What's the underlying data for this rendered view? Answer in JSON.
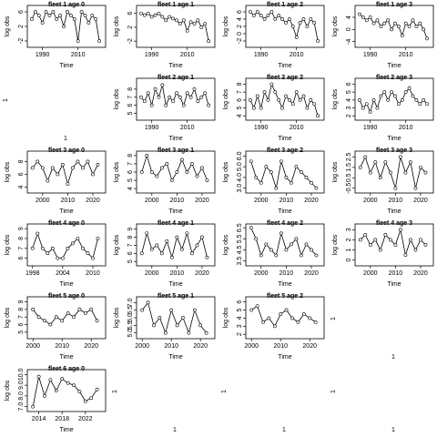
{
  "chart_data": [
    {
      "type": "line",
      "title": "fleet 1 age 0",
      "xlabel": "Time",
      "ylabel": "log obs",
      "points": true,
      "xlim": [
        1983,
        2024
      ],
      "xticks": [
        1990,
        2010
      ],
      "ylim": [
        -3,
        7
      ],
      "yticks": [
        -2,
        2,
        6
      ],
      "x": [
        1984,
        1986,
        1988,
        1990,
        1992,
        1994,
        1996,
        1998,
        2000,
        2002,
        2004,
        2006,
        2008,
        2010,
        2012,
        2014,
        2016,
        2018,
        2020,
        2022
      ],
      "values": [
        4,
        6,
        5,
        3,
        6,
        5,
        6,
        4,
        5,
        2,
        6,
        5,
        4,
        -2,
        6,
        5,
        3,
        5,
        4,
        -2
      ]
    },
    {
      "type": "line",
      "title": "fleet 1 age 1",
      "xlabel": "Time",
      "ylabel": "log obs",
      "points": true,
      "xlim": [
        1983,
        2024
      ],
      "xticks": [
        1990,
        2010
      ],
      "ylim": [
        -3,
        7.5
      ],
      "yticks": [
        -2,
        2,
        6
      ],
      "x": [
        1984,
        1986,
        1988,
        1990,
        1992,
        1994,
        1996,
        1998,
        2000,
        2002,
        2004,
        2006,
        2008,
        2010,
        2012,
        2014,
        2016,
        2018,
        2020,
        2022
      ],
      "values": [
        6,
        5.5,
        6,
        5,
        5.5,
        6,
        5,
        4,
        5,
        4.5,
        4,
        3,
        4,
        1,
        3.5,
        3,
        4,
        2,
        3,
        -2
      ]
    },
    {
      "type": "line",
      "title": "fleet 1 age 2",
      "xlabel": "Time",
      "ylabel": "log obs",
      "points": true,
      "xlim": [
        1983,
        2024
      ],
      "xticks": [
        1990,
        2010
      ],
      "ylim": [
        -3,
        7
      ],
      "yticks": [
        -2,
        0,
        2,
        4,
        6
      ],
      "x": [
        1984,
        1986,
        1988,
        1990,
        1992,
        1994,
        1996,
        1998,
        2000,
        2002,
        2004,
        2006,
        2008,
        2010,
        2012,
        2014,
        2016,
        2018,
        2020,
        2022
      ],
      "values": [
        6,
        5,
        6,
        5,
        4,
        5,
        6,
        4,
        5,
        4,
        3,
        4,
        2,
        -1,
        3,
        4,
        2,
        4,
        3,
        -2
      ]
    },
    {
      "type": "line",
      "title": "fleet 1 age 3",
      "xlabel": "Time",
      "ylabel": "log obs",
      "points": true,
      "xlim": [
        1983,
        2024
      ],
      "xticks": [
        1990,
        2010
      ],
      "ylim": [
        -5,
        7
      ],
      "yticks": [
        -4,
        0,
        4
      ],
      "x": [
        1984,
        1986,
        1988,
        1990,
        1992,
        1994,
        1996,
        1998,
        2000,
        2002,
        2004,
        2006,
        2008,
        2010,
        2012,
        2014,
        2016,
        2018,
        2020,
        2022
      ],
      "values": [
        5,
        4,
        3,
        4,
        2,
        3,
        1,
        2,
        3,
        0,
        2,
        1,
        -2,
        2,
        1,
        3,
        1,
        2,
        0,
        -3
      ]
    },
    {
      "type": "blank",
      "xlabel": "1",
      "ylabel": "1"
    },
    {
      "type": "line",
      "title": "fleet 2 age 1",
      "xlabel": "Time",
      "ylabel": "log obs",
      "points": true,
      "xlim": [
        1983,
        2024
      ],
      "xticks": [
        1990,
        2010
      ],
      "ylim": [
        4.5,
        9
      ],
      "yticks": [
        5,
        6,
        7,
        8
      ],
      "x": [
        1984,
        1986,
        1988,
        1990,
        1992,
        1994,
        1996,
        1998,
        2000,
        2002,
        2004,
        2006,
        2008,
        2010,
        2012,
        2014,
        2016,
        2018,
        2020,
        2022
      ],
      "values": [
        7,
        6.5,
        7.5,
        6,
        8,
        7,
        8.5,
        6,
        7,
        6.5,
        7.5,
        7,
        6,
        7.5,
        7,
        8,
        6.5,
        7,
        7.5,
        6
      ]
    },
    {
      "type": "line",
      "title": "fleet 2 age 2",
      "xlabel": "Time",
      "ylabel": "log obs",
      "points": true,
      "xlim": [
        1983,
        2024
      ],
      "xticks": [
        1990,
        2010
      ],
      "ylim": [
        3.8,
        8.4
      ],
      "yticks": [
        4,
        5,
        6,
        7,
        8
      ],
      "x": [
        1984,
        1986,
        1988,
        1990,
        1992,
        1994,
        1996,
        1998,
        2000,
        2002,
        2004,
        2006,
        2008,
        2010,
        2012,
        2014,
        2016,
        2018,
        2020,
        2022
      ],
      "values": [
        6,
        5,
        6.5,
        5,
        7,
        6,
        8,
        7,
        6,
        5,
        6.5,
        6,
        5.5,
        7,
        6,
        6.5,
        5,
        6,
        5.5,
        4
      ]
    },
    {
      "type": "line",
      "title": "fleet 2 age 3",
      "xlabel": "Time",
      "ylabel": "log obs",
      "points": true,
      "xlim": [
        1983,
        2024
      ],
      "xticks": [
        1990,
        2010
      ],
      "ylim": [
        1.8,
        6.4
      ],
      "yticks": [
        2,
        3,
        4,
        5,
        6
      ],
      "x": [
        1984,
        1986,
        1988,
        1990,
        1992,
        1994,
        1996,
        1998,
        2000,
        2002,
        2004,
        2006,
        2008,
        2010,
        2012,
        2014,
        2016,
        2018,
        2020,
        2022
      ],
      "values": [
        4,
        3,
        3.5,
        2.5,
        4,
        3,
        4.5,
        5,
        4,
        5,
        4.5,
        3.5,
        4,
        5,
        5.5,
        4.5,
        4,
        3.5,
        4,
        3.5
      ]
    },
    {
      "type": "line",
      "title": "fleet 3 age 0",
      "xlabel": "Time",
      "ylabel": "log obs",
      "points": true,
      "xlim": [
        1995,
        2024
      ],
      "xticks": [
        2000,
        2010,
        2020
      ],
      "ylim": [
        3.5,
        9.2
      ],
      "yticks": [
        4,
        6,
        8
      ],
      "x": [
        1996,
        1998,
        2000,
        2002,
        2004,
        2006,
        2008,
        2010,
        2012,
        2014,
        2016,
        2018,
        2020,
        2022
      ],
      "values": [
        7,
        8,
        7,
        5,
        7,
        6,
        7.5,
        4.5,
        7,
        8,
        7,
        8,
        6,
        7.5
      ]
    },
    {
      "type": "line",
      "title": "fleet 3 age 1",
      "xlabel": "Time",
      "ylabel": "log obs",
      "points": true,
      "xlim": [
        1995,
        2024
      ],
      "xticks": [
        2000,
        2010,
        2020
      ],
      "ylim": [
        3.8,
        8.2
      ],
      "yticks": [
        4,
        5,
        6,
        7,
        8
      ],
      "x": [
        1996,
        1998,
        2000,
        2002,
        2004,
        2006,
        2008,
        2010,
        2012,
        2014,
        2016,
        2018,
        2020,
        2022
      ],
      "values": [
        6,
        8,
        6,
        5.5,
        6.5,
        7,
        5,
        6,
        7.5,
        6,
        7,
        5.5,
        6.5,
        5
      ]
    },
    {
      "type": "line",
      "title": "fleet 3 age 2",
      "xlabel": "Time",
      "ylabel": "log obs",
      "points": true,
      "xlim": [
        1995,
        2024
      ],
      "xticks": [
        2000,
        2010,
        2020
      ],
      "ylim": [
        2.8,
        6.2
      ],
      "yticks": [
        {
          "value": 3,
          "label": "3.0"
        },
        {
          "value": 4,
          "label": "4.0"
        },
        {
          "value": 5,
          "label": "5.0"
        },
        {
          "value": 6,
          "label": "6.0"
        }
      ],
      "x": [
        1996,
        1998,
        2000,
        2002,
        2004,
        2006,
        2008,
        2010,
        2012,
        2014,
        2016,
        2018,
        2020,
        2022
      ],
      "values": [
        5.5,
        4,
        3.5,
        5,
        4.5,
        3,
        5.5,
        4,
        3.5,
        5,
        4.5,
        4,
        3.5,
        3
      ]
    },
    {
      "type": "line",
      "title": "fleet 3 age 3",
      "xlabel": "Time",
      "ylabel": "log obs",
      "points": true,
      "xlim": [
        1995,
        2024
      ],
      "xticks": [
        2000,
        2010,
        2020
      ],
      "ylim": [
        -0.7,
        2.8
      ],
      "yticks": [
        -0.5,
        0.5,
        1.5,
        2.5
      ],
      "x": [
        1996,
        1998,
        2000,
        2002,
        2004,
        2006,
        2008,
        2010,
        2012,
        2014,
        2016,
        2018,
        2020,
        2022
      ],
      "values": [
        1.5,
        2.5,
        1,
        2,
        0.5,
        2,
        1,
        -0.5,
        2.5,
        1,
        2,
        -0.5,
        1.5,
        1
      ]
    },
    {
      "type": "line",
      "title": "fleet 4 age 0",
      "xlabel": "Time",
      "ylabel": "log obs",
      "points": true,
      "xlim": [
        1997.5,
        2012
      ],
      "xticks": [
        1998,
        2004,
        2010
      ],
      "ylim": [
        5.5,
        9.2
      ],
      "yticks": [
        6,
        7,
        8,
        9
      ],
      "x": [
        1998,
        1999,
        2000,
        2001,
        2002,
        2003,
        2004,
        2005,
        2006,
        2007,
        2008,
        2009,
        2010,
        2011
      ],
      "values": [
        7,
        8.5,
        7,
        6.5,
        7,
        6,
        6,
        7,
        7.5,
        8,
        7,
        6.5,
        6,
        8
      ]
    },
    {
      "type": "line",
      "title": "fleet 4 age 1",
      "xlabel": "Time",
      "ylabel": "log obs",
      "points": true,
      "xlim": [
        1995,
        2024
      ],
      "xticks": [
        2000,
        2010,
        2020
      ],
      "ylim": [
        4.8,
        9.3
      ],
      "yticks": [
        5,
        6,
        7,
        8,
        9
      ],
      "x": [
        1996,
        1998,
        2000,
        2002,
        2004,
        2006,
        2008,
        2010,
        2012,
        2014,
        2016,
        2018,
        2020,
        2022
      ],
      "values": [
        6,
        8.5,
        6.5,
        7,
        6,
        7.5,
        5.5,
        8,
        6.5,
        8.5,
        6,
        7,
        8,
        5.5
      ]
    },
    {
      "type": "line",
      "title": "fleet 4 age 2",
      "xlabel": "Time",
      "ylabel": "log obs",
      "points": true,
      "xlim": [
        1995,
        2024
      ],
      "xticks": [
        2000,
        2010,
        2020
      ],
      "ylim": [
        3.3,
        6.6
      ],
      "yticks": [
        3.5,
        4.5,
        5.5,
        6.5
      ],
      "x": [
        1996,
        1998,
        2000,
        2002,
        2004,
        2006,
        2008,
        2010,
        2012,
        2014,
        2016,
        2018,
        2020,
        2022
      ],
      "values": [
        6.5,
        5.5,
        4,
        5,
        4.5,
        4,
        6,
        4.5,
        5,
        5.5,
        4,
        5,
        4.5,
        4
      ]
    },
    {
      "type": "line",
      "title": "fleet 4 age 3",
      "xlabel": "Time",
      "ylabel": "log obs",
      "points": true,
      "xlim": [
        1995,
        2024
      ],
      "xticks": [
        2000,
        2010,
        2020
      ],
      "ylim": [
        -0.3,
        3.3
      ],
      "yticks": [
        0,
        1,
        2,
        3
      ],
      "x": [
        1996,
        1998,
        2000,
        2002,
        2004,
        2006,
        2008,
        2010,
        2012,
        2014,
        2016,
        2018,
        2020,
        2022
      ],
      "values": [
        2,
        2.5,
        1.5,
        2,
        1,
        2.5,
        2,
        1.5,
        3,
        0.5,
        2,
        1,
        2,
        1.5
      ]
    },
    {
      "type": "line",
      "title": "fleet 5 age 0",
      "xlabel": "Time",
      "ylabel": "log obs",
      "points": true,
      "xlim": [
        1999,
        2024
      ],
      "xticks": [
        2000,
        2010,
        2020
      ],
      "ylim": [
        4.5,
        9.3
      ],
      "yticks": [
        5,
        6,
        7,
        8,
        9
      ],
      "x": [
        2000,
        2002,
        2004,
        2006,
        2008,
        2010,
        2012,
        2014,
        2016,
        2018,
        2020,
        2022
      ],
      "values": [
        8,
        7,
        6.5,
        6,
        7,
        6.5,
        7.5,
        7,
        8,
        7.5,
        8,
        6.5
      ]
    },
    {
      "type": "line",
      "title": "fleet 5 age 1",
      "xlabel": "Time",
      "ylabel": "log obs",
      "points": true,
      "xlim": [
        1999,
        2024
      ],
      "xticks": [
        2000,
        2010,
        2020
      ],
      "ylim": [
        4.8,
        7.2
      ],
      "yticks": [
        {
          "value": 5,
          "label": "5.0"
        },
        5.5,
        {
          "value": 6,
          "label": "6.0"
        },
        6.5,
        {
          "value": 7,
          "label": "7.0"
        }
      ],
      "x": [
        2000,
        2002,
        2004,
        2006,
        2008,
        2010,
        2012,
        2014,
        2016,
        2018,
        2020,
        2022
      ],
      "values": [
        6.5,
        7,
        5.5,
        6,
        5,
        6.5,
        5.5,
        6,
        5,
        6.5,
        5.5,
        5
      ]
    },
    {
      "type": "line",
      "title": "fleet 5 age 2",
      "xlabel": "Time",
      "ylabel": "log obs",
      "points": true,
      "xlim": [
        1999,
        2024
      ],
      "xticks": [
        2000,
        2010,
        2020
      ],
      "ylim": [
        1.8,
        6.3
      ],
      "yticks": [
        2,
        3,
        4,
        5,
        6
      ],
      "x": [
        2000,
        2002,
        2004,
        2006,
        2008,
        2010,
        2012,
        2014,
        2016,
        2018,
        2020,
        2022
      ],
      "values": [
        5,
        5.5,
        3.5,
        4,
        3,
        4.5,
        5,
        4,
        3.5,
        4.5,
        4,
        3.5
      ]
    },
    {
      "type": "blank",
      "xlabel": "1",
      "ylabel": "1"
    },
    {
      "type": "line",
      "title": "fleet 6 age 0",
      "xlabel": "Time",
      "ylabel": "log obs",
      "points": true,
      "xlim": [
        2012.5,
        2025
      ],
      "xticks": [
        2014,
        2018,
        2022
      ],
      "ylim": [
        6.8,
        10.2
      ],
      "yticks": [
        {
          "value": 7,
          "label": "7.0"
        },
        {
          "value": 8,
          "label": "8.0"
        },
        {
          "value": 9,
          "label": "9.0"
        },
        {
          "value": 10,
          "label": "10.0"
        }
      ],
      "x": [
        2013,
        2014,
        2015,
        2016,
        2017,
        2018,
        2019,
        2020,
        2021,
        2022,
        2023,
        2024
      ],
      "values": [
        7,
        9.8,
        8,
        9.5,
        8.5,
        9.6,
        9.2,
        9,
        8.4,
        7.5,
        7.8,
        8.6
      ]
    },
    {
      "type": "blank",
      "xlabel": "1",
      "ylabel": "1"
    },
    {
      "type": "blank",
      "xlabel": "1",
      "ylabel": "1"
    },
    {
      "type": "blank",
      "xlabel": "1",
      "ylabel": "1"
    }
  ]
}
